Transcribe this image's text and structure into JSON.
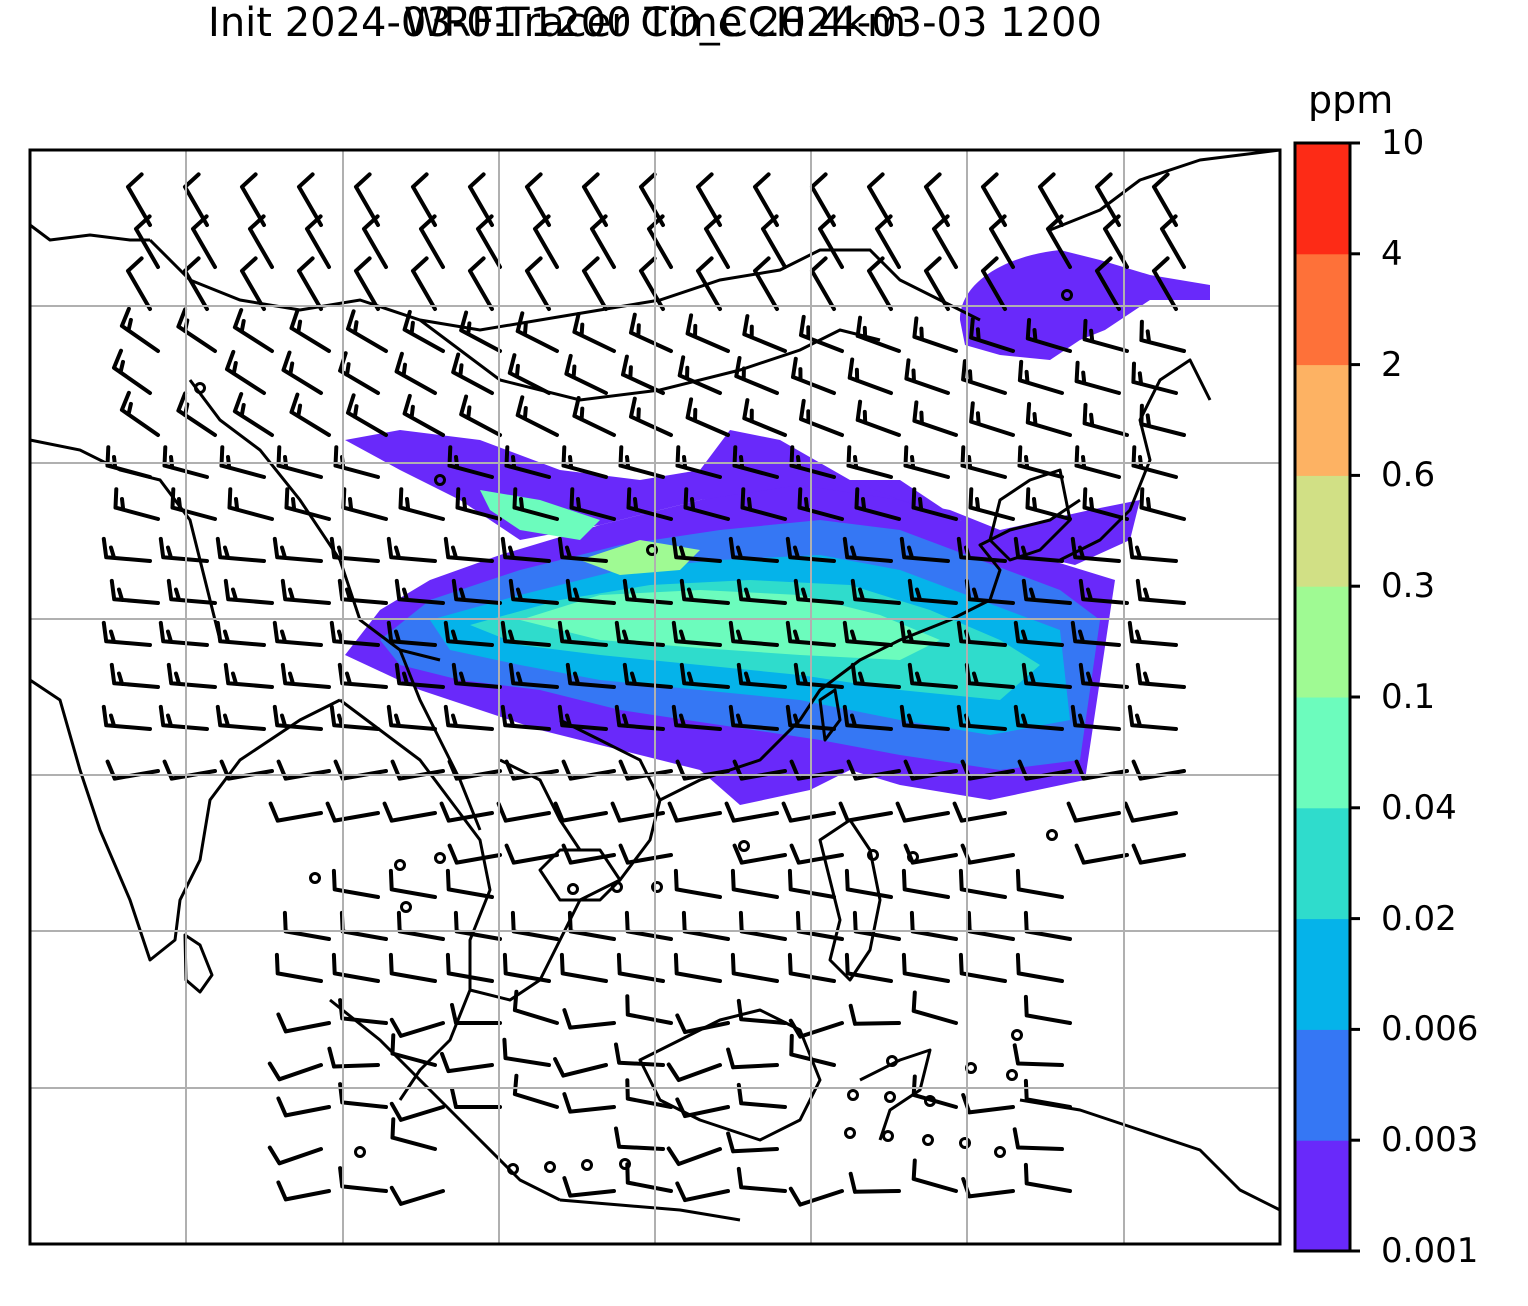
{
  "title": {
    "line1": "WRF-Tracer CO_CCH 4km",
    "line2": "Init 2024-03-01 1200 Time 2024-03-03 1200"
  },
  "colorbar": {
    "units": "ppm",
    "ticks": [
      "0.001",
      "0.003",
      "0.006",
      "0.02",
      "0.04",
      "0.1",
      "0.3",
      "0.6",
      "2",
      "4",
      "10"
    ],
    "colors": [
      "#6929fa",
      "#3577f4",
      "#05b3ea",
      "#2fdccc",
      "#6cfcbd",
      "#9ffa93",
      "#d1e085",
      "#fdb263",
      "#fe7139",
      "#fd2b16"
    ]
  },
  "map": {
    "gridlines": "on",
    "gridline_color": "#b0b0b0",
    "layers": [
      "coastlines",
      "country-borders",
      "tracer-plume",
      "wind-barbs"
    ]
  }
}
